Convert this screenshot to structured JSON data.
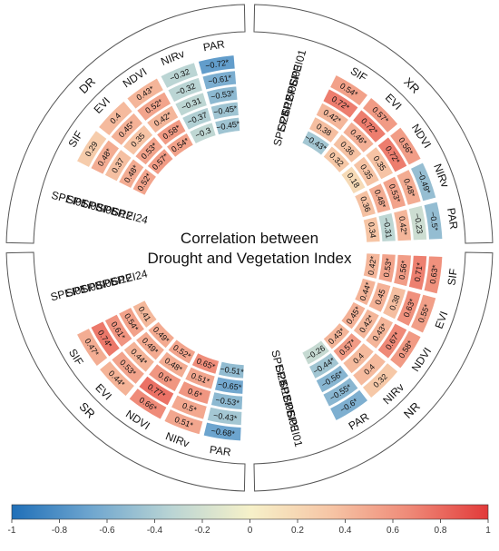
{
  "chart_data": {
    "type": "heatmap",
    "title": "Correlation between Drought and Vegetation Index",
    "colorbar": {
      "min": -1,
      "max": 1,
      "ticks": [
        "-1",
        "-0.8",
        "-0.6",
        "-0.4",
        "-0.2",
        "0",
        "0.2",
        "0.4",
        "0.6",
        "0.8",
        "1"
      ],
      "colors": [
        "#1f6fb8",
        "#6fa6cf",
        "#b9d4d4",
        "#f6f1c9",
        "#f6c6a6",
        "#ef8a78",
        "#e23a3a"
      ]
    },
    "rows": [
      "SPEI01",
      "SPEI03",
      "SPEI06",
      "SPEI12",
      "SPEI24"
    ],
    "variables": [
      "SIF",
      "EVI",
      "NDVI",
      "NIRv",
      "PAR"
    ],
    "panels": [
      {
        "region": "DR",
        "labels": [
          "SIF",
          "EVI",
          "NDVI",
          "NIRv",
          "PAR"
        ],
        "cells": [
          [
            "0.29",
            "0.4",
            "0.43*",
            "-0.32",
            "-0.72*"
          ],
          [
            "0.48*",
            "0.45*",
            "0.52*",
            "-0.32",
            "-0.61*"
          ],
          [
            "0.37",
            "0.35",
            "0.42*",
            "-0.31",
            "-0.53*"
          ],
          [
            "0.48*",
            "0.53*",
            "0.58*",
            "-0.37",
            "-0.45*"
          ],
          [
            "0.52*",
            "0.57*",
            "0.54*",
            "-0.3",
            "-0.45*"
          ]
        ],
        "values": [
          [
            0.29,
            0.4,
            0.43,
            -0.32,
            -0.72
          ],
          [
            0.48,
            0.45,
            0.52,
            -0.32,
            -0.61
          ],
          [
            0.37,
            0.35,
            0.42,
            -0.31,
            -0.53
          ],
          [
            0.48,
            0.53,
            0.58,
            -0.37,
            -0.45
          ],
          [
            0.52,
            0.57,
            0.54,
            -0.3,
            -0.45
          ]
        ]
      },
      {
        "region": "XR",
        "labels": [
          "SIF",
          "EVI",
          "NDVI",
          "NIRv",
          "PAR"
        ],
        "cells": [
          [
            "0.54*",
            "0.57*",
            "0.56*",
            "-0.49*",
            "-0.5*"
          ],
          [
            "0.72*",
            "0.72*",
            "0.72*",
            "0.48*",
            "-0.23"
          ],
          [
            "0.42*",
            "0.46*",
            "0.35",
            "0.53*",
            "0.42*"
          ],
          [
            "0.38",
            "0.36",
            "0.35",
            "0.48*",
            "-0.31"
          ],
          [
            "-0.43*",
            "0.32",
            "0.18",
            "0.36",
            "0.34"
          ]
        ],
        "values": [
          [
            0.54,
            0.57,
            0.56,
            -0.49,
            -0.5
          ],
          [
            0.72,
            0.72,
            0.72,
            0.48,
            -0.23
          ],
          [
            0.42,
            0.46,
            0.35,
            0.53,
            0.42
          ],
          [
            0.38,
            0.36,
            0.35,
            0.48,
            -0.31
          ],
          [
            -0.43,
            0.32,
            0.18,
            0.36,
            0.34
          ]
        ]
      },
      {
        "region": "NR",
        "labels": [
          "SIF",
          "EVI",
          "NDVI",
          "NIRv",
          "PAR"
        ],
        "cells": [
          [
            "0.63*",
            "0.55*",
            "0.58*",
            "0.32",
            "-0.6*"
          ],
          [
            "0.71*",
            "0.63*",
            "0.67*",
            "0.4",
            "-0.55*"
          ],
          [
            "0.56*",
            "0.38",
            "0.43*",
            "0.4",
            "-0.56*"
          ],
          [
            "0.53*",
            "0.45",
            "0.42*",
            "0.57*",
            "-0.44*"
          ],
          [
            "0.42*",
            "0.44*",
            "0.45*",
            "0.43*",
            "-0.26"
          ]
        ],
        "values": [
          [
            0.63,
            0.55,
            0.58,
            0.32,
            -0.6
          ],
          [
            0.71,
            0.63,
            0.67,
            0.4,
            -0.55
          ],
          [
            0.56,
            0.38,
            0.43,
            0.4,
            -0.56
          ],
          [
            0.53,
            0.45,
            0.42,
            0.57,
            -0.44
          ],
          [
            0.42,
            0.44,
            0.45,
            0.43,
            -0.26
          ]
        ]
      },
      {
        "region": "SR",
        "labels": [
          "SIF",
          "EVI",
          "NDVI",
          "NIRv",
          "PAR"
        ],
        "cells": [
          [
            "0.47*",
            "0.44*",
            "0.66*",
            "0.51*",
            "-0.68*"
          ],
          [
            "0.74*",
            "0.53*",
            "0.77*",
            "0.5*",
            "-0.43*"
          ],
          [
            "0.61*",
            "0.44*",
            "0.6*",
            "0.6*",
            "-0.53*"
          ],
          [
            "0.54*",
            "0.49*",
            "0.48*",
            "0.51*",
            "-0.65*"
          ],
          [
            "0.41",
            "0.49*",
            "0.52*",
            "0.65*",
            "-0.51*"
          ]
        ],
        "values": [
          [
            0.47,
            0.44,
            0.66,
            0.51,
            -0.68
          ],
          [
            0.74,
            0.53,
            0.77,
            0.5,
            -0.43
          ],
          [
            0.61,
            0.44,
            0.6,
            0.6,
            -0.53
          ],
          [
            0.54,
            0.49,
            0.48,
            0.51,
            -0.65
          ],
          [
            0.41,
            0.49,
            0.52,
            0.65,
            -0.51
          ]
        ]
      }
    ]
  }
}
